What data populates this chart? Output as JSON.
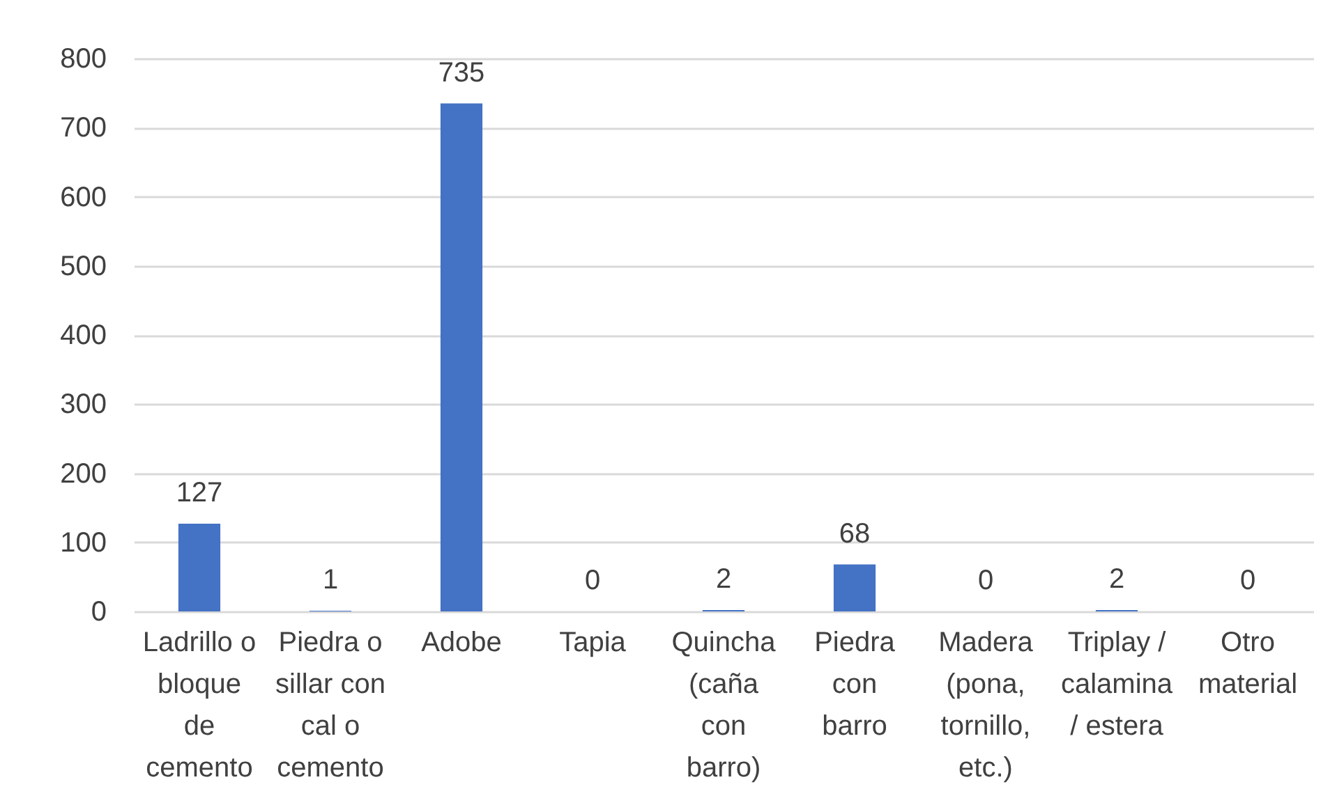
{
  "chart_data": {
    "type": "bar",
    "categories": [
      "Ladrillo o bloque de cemento",
      "Piedra o sillar con cal o cemento",
      "Adobe",
      "Tapia",
      "Quincha (caña con barro)",
      "Piedra con barro",
      "Madera (pona, tornillo, etc.)",
      "Triplay / calamina / estera",
      "Otro material"
    ],
    "values": [
      127,
      1,
      735,
      0,
      2,
      68,
      0,
      2,
      0
    ],
    "color": "#4472c4",
    "ylim": [
      0,
      800
    ],
    "yticks": [
      0,
      100,
      200,
      300,
      400,
      500,
      600,
      700,
      800
    ],
    "grid": "y",
    "data_labels": true
  }
}
